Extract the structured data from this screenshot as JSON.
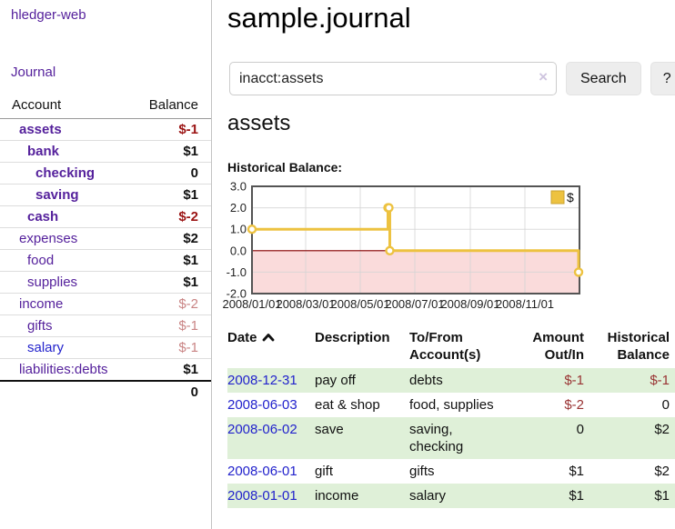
{
  "colors": {
    "link_purple": "#55219c",
    "link_blue": "#2222cc",
    "neg_strong": "#9b1414",
    "neg_soft": "#c98484",
    "table_neg": "#993333",
    "row_green": "#dff0d8",
    "chart_line": "#edc240",
    "chart_legend_border": "#c9a12f",
    "chart_fill_neg": "#fadbdb",
    "zero_line": "#850000",
    "chart_border": "#545454",
    "grid_line": "#d4d4d4",
    "button_bg": "#ededed",
    "clear_icon": "#cfc5df"
  },
  "app": {
    "brand": "hledger-web",
    "nav_journal": "Journal"
  },
  "sidebar": {
    "headers": {
      "account": "Account",
      "balance": "Balance"
    },
    "accounts": [
      {
        "name": "assets",
        "balance": "$-1",
        "depth": 0,
        "bold": true,
        "neg": "strong"
      },
      {
        "name": "bank",
        "balance": "$1",
        "depth": 1,
        "bold": true
      },
      {
        "name": "checking",
        "balance": "0",
        "depth": 2,
        "bold": true
      },
      {
        "name": "saving",
        "balance": "$1",
        "depth": 2,
        "bold": true
      },
      {
        "name": "cash",
        "balance": "$-2",
        "depth": 1,
        "bold": true,
        "neg": "strong"
      },
      {
        "name": "expenses",
        "balance": "$2",
        "depth": 0
      },
      {
        "name": "food",
        "balance": "$1",
        "depth": 1
      },
      {
        "name": "supplies",
        "balance": "$1",
        "depth": 1
      },
      {
        "name": "income",
        "balance": "$-2",
        "depth": 0,
        "neg": "soft"
      },
      {
        "name": "gifts",
        "balance": "$-1",
        "depth": 1,
        "neg": "soft"
      },
      {
        "name": "salary",
        "balance": "$-1",
        "depth": 1,
        "neg": "soft",
        "link": "blue"
      },
      {
        "name": "liabilities:debts",
        "balance": "$1",
        "depth": 0
      }
    ],
    "total": "0"
  },
  "header": {
    "title": "sample.journal"
  },
  "search": {
    "value": "inacct:assets",
    "clear_icon": "×",
    "button": "Search",
    "help_button": "?"
  },
  "main": {
    "account_title": "assets",
    "chart_label": "Historical Balance:"
  },
  "chart_data": {
    "type": "line",
    "step": true,
    "title": "Historical Balance:",
    "series": [
      {
        "name": "$",
        "points": [
          [
            "2008-01-01",
            1
          ],
          [
            "2008-06-01",
            2
          ],
          [
            "2008-06-02",
            2
          ],
          [
            "2008-06-03",
            0
          ],
          [
            "2008-12-31",
            -1
          ]
        ]
      }
    ],
    "x_ticks": [
      "2008/01/01",
      "2008/03/01",
      "2008/05/01",
      "2008/07/01",
      "2008/09/01",
      "2008/11/01"
    ],
    "y_ticks": [
      3.0,
      2.0,
      1.0,
      0.0,
      -1.0,
      -2.0
    ],
    "xlim": [
      "2008-01-01",
      "2009-01-01"
    ],
    "ylim": [
      -2,
      3
    ],
    "legend_position": "top-right",
    "negative_region_shaded": true,
    "grid": true
  },
  "register_table": {
    "headers": [
      {
        "line1": "Date",
        "line2": "",
        "align": "left",
        "sortable": true
      },
      {
        "line1": "Description",
        "line2": "",
        "align": "left"
      },
      {
        "line1": "To/From",
        "line2": "Account(s)",
        "align": "left"
      },
      {
        "line1": "Amount",
        "line2": "Out/In",
        "align": "right"
      },
      {
        "line1": "Historical",
        "line2": "Balance",
        "align": "right"
      }
    ],
    "rows": [
      {
        "date": "2008-12-31",
        "description": "pay off",
        "accounts": "debts",
        "amount": "$-1",
        "balance": "$-1",
        "amount_neg": true,
        "balance_neg": true
      },
      {
        "date": "2008-06-03",
        "description": "eat & shop",
        "accounts": "food, supplies",
        "amount": "$-2",
        "balance": "0",
        "amount_neg": true,
        "balance_neg": false
      },
      {
        "date": "2008-06-02",
        "description": "save",
        "accounts": "saving, checking",
        "amount": "0",
        "balance": "$2",
        "amount_neg": false,
        "balance_neg": false
      },
      {
        "date": "2008-06-01",
        "description": "gift",
        "accounts": "gifts",
        "amount": "$1",
        "balance": "$2",
        "amount_neg": false,
        "balance_neg": false
      },
      {
        "date": "2008-01-01",
        "description": "income",
        "accounts": "salary",
        "amount": "$1",
        "balance": "$1",
        "amount_neg": false,
        "balance_neg": false
      }
    ]
  }
}
